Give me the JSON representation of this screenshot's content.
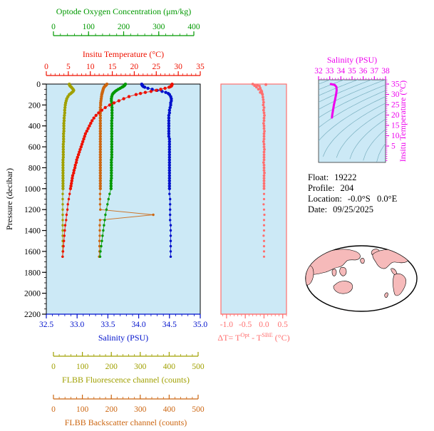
{
  "colors": {
    "background": "#ffffff",
    "plot_bg": "#cce9f6",
    "green": "#009900",
    "red": "#ee1100",
    "blue": "#0011cc",
    "olive": "#a0a000",
    "orange": "#cc6611",
    "salmon": "#ff6f6f",
    "magenta": "#ee00ee",
    "contour": "#7ab0c0",
    "axis_black": "#000000",
    "map_land": "#f6baba",
    "map_ocean": "#ffffff"
  },
  "info": {
    "rows": [
      {
        "label": "Float:",
        "value": "19222"
      },
      {
        "label": "Profile:",
        "value": "204"
      },
      {
        "label": "Location:",
        "value": "-0.0°S   0.0°E"
      },
      {
        "label": "Date:",
        "value": "09/25/2025"
      }
    ]
  },
  "chart_data": [
    {
      "type": "line",
      "name": "main-profile-plot",
      "pressure_axis": {
        "label": "Pressure (decibar)",
        "range": [
          0,
          2200
        ],
        "ticks": [
          "0",
          "200",
          "400",
          "600",
          "800",
          "1000",
          "1200",
          "1400",
          "1600",
          "1800",
          "2000",
          "2200"
        ]
      },
      "axes": {
        "oxygen": {
          "label": "Optode Oxygen Concentration (μm/kg)",
          "range": [
            0,
            400
          ],
          "ticks": [
            "0",
            "100",
            "200",
            "300",
            "400"
          ],
          "minor": 20,
          "color": "green"
        },
        "temperature": {
          "label": "Insitu Temperature (°C)",
          "range": [
            0,
            35
          ],
          "ticks": [
            "0",
            "5",
            "10",
            "15",
            "20",
            "25",
            "30",
            "35"
          ],
          "minor": 1,
          "color": "red"
        },
        "salinity": {
          "label": "Salinity (PSU)",
          "range": [
            32.5,
            35.0
          ],
          "ticks": [
            "32.5",
            "33.0",
            "33.5",
            "34.0",
            "34.5",
            "35.0"
          ],
          "minor": 0.1,
          "color": "blue"
        },
        "fluorescence": {
          "label": "FLBB Fluorescence channel (counts)",
          "range": [
            0,
            500
          ],
          "ticks": [
            "0",
            "100",
            "200",
            "300",
            "400",
            "500"
          ],
          "minor": 20,
          "color": "olive"
        },
        "backscatter": {
          "label": "FLBB Backscatter channel (counts)",
          "range": [
            0,
            500
          ],
          "ticks": [
            "0",
            "100",
            "200",
            "300",
            "400",
            "500"
          ],
          "minor": 20,
          "color": "orange"
        }
      },
      "pressure": [
        0,
        5,
        10,
        15,
        20,
        25,
        30,
        40,
        50,
        60,
        70,
        80,
        90,
        100,
        120,
        140,
        160,
        180,
        200,
        225,
        250,
        275,
        300,
        325,
        350,
        375,
        400,
        425,
        450,
        475,
        500,
        525,
        550,
        575,
        600,
        625,
        650,
        675,
        700,
        725,
        750,
        775,
        800,
        825,
        850,
        875,
        900,
        925,
        950,
        975,
        1000,
        1050,
        1100,
        1150,
        1200,
        1250,
        1300,
        1350,
        1400,
        1450,
        1500,
        1550,
        1600,
        1650
      ],
      "series": {
        "temperature": [
          28.6,
          28.6,
          28.5,
          28.5,
          28.4,
          28.2,
          27.9,
          27.0,
          26.0,
          25.0,
          23.8,
          22.5,
          21.4,
          20.4,
          18.8,
          17.6,
          16.5,
          15.4,
          14.4,
          13.4,
          12.6,
          11.9,
          11.3,
          10.8,
          10.4,
          10.1,
          9.8,
          9.5,
          9.2,
          8.9,
          8.7,
          8.5,
          8.3,
          8.1,
          7.9,
          7.7,
          7.5,
          7.3,
          7.1,
          6.9,
          6.8,
          6.6,
          6.5,
          6.3,
          6.2,
          6.0,
          5.9,
          5.8,
          5.7,
          5.6,
          5.5,
          5.3,
          5.1,
          4.9,
          4.8,
          4.6,
          4.5,
          4.3,
          4.2,
          4.1,
          4.0,
          3.9,
          3.8,
          3.7
        ],
        "salinity": [
          34.05,
          34.05,
          34.06,
          34.06,
          34.07,
          34.08,
          34.1,
          34.15,
          34.22,
          34.3,
          34.38,
          34.44,
          34.48,
          34.5,
          34.52,
          34.53,
          34.53,
          34.52,
          34.52,
          34.51,
          34.5,
          34.5,
          34.49,
          34.49,
          34.49,
          34.49,
          34.49,
          34.49,
          34.49,
          34.49,
          34.49,
          34.5,
          34.5,
          34.5,
          34.5,
          34.5,
          34.5,
          34.5,
          34.5,
          34.5,
          34.5,
          34.5,
          34.5,
          34.5,
          34.5,
          34.5,
          34.5,
          34.5,
          34.5,
          34.5,
          34.5,
          34.5,
          34.51,
          34.51,
          34.51,
          34.51,
          34.51,
          34.52,
          34.52,
          34.52,
          34.52,
          34.52,
          34.52,
          34.52
        ],
        "oxygen": [
          205,
          204,
          203,
          202,
          200,
          198,
          195,
          190,
          185,
          180,
          176,
          173,
          170,
          168,
          166,
          165,
          165,
          166,
          166,
          167,
          167,
          167,
          167,
          167,
          166,
          166,
          166,
          166,
          166,
          166,
          166,
          166,
          166,
          166,
          166,
          166,
          166,
          166,
          166,
          165,
          165,
          165,
          165,
          165,
          165,
          165,
          165,
          164,
          164,
          164,
          164,
          160,
          157,
          154,
          151,
          148,
          146,
          144,
          142,
          140,
          138,
          136,
          134,
          133
        ],
        "fluorescence": [
          55,
          55,
          56,
          57,
          58,
          60,
          62,
          65,
          68,
          70,
          68,
          64,
          60,
          55,
          50,
          46,
          44,
          42,
          41,
          40,
          39,
          39,
          38,
          37,
          37,
          36,
          36,
          36,
          36,
          35,
          35,
          35,
          35,
          34,
          34,
          34,
          34,
          34,
          34,
          33,
          33,
          33,
          33,
          33,
          33,
          33,
          33,
          33,
          33,
          33,
          33,
          32,
          32,
          32,
          32,
          32,
          32,
          32,
          32,
          32,
          32,
          32,
          32,
          32
        ],
        "backscatter": [
          185,
          183,
          182,
          180,
          178,
          176,
          175,
          173,
          172,
          171,
          170,
          169,
          168,
          167,
          166,
          165,
          164,
          163,
          163,
          162,
          162,
          162,
          162,
          162,
          162,
          162,
          162,
          162,
          162,
          162,
          162,
          162,
          162,
          162,
          162,
          162,
          162,
          162,
          162,
          162,
          162,
          162,
          162,
          162,
          162,
          162,
          162,
          162,
          162,
          162,
          162,
          161,
          161,
          161,
          162,
          345,
          161,
          160,
          160,
          160,
          159,
          159,
          159,
          158
        ]
      }
    },
    {
      "type": "scatter",
      "name": "delta-t-plot",
      "x_axis": {
        "label_parts": {
          "pre": "ΔT= T",
          "sup1": "Opt",
          "mid": " - T",
          "sup2": "SBE",
          "post": " (°C)"
        },
        "range": [
          -1.15,
          0.6
        ],
        "ticks": [
          "-1.0",
          "-0.5",
          "0.0",
          "0.5"
        ],
        "minor": 0.1,
        "color": "salmon"
      },
      "pressure": [
        0,
        5,
        10,
        15,
        20,
        30,
        40,
        50,
        60,
        70,
        80,
        90,
        100,
        125,
        150,
        175,
        200,
        225,
        250,
        275,
        300,
        325,
        350,
        375,
        400,
        425,
        450,
        475,
        500,
        525,
        550,
        575,
        600,
        625,
        650,
        675,
        700,
        725,
        750,
        775,
        800,
        825,
        850,
        875,
        900,
        925,
        950,
        975,
        1000,
        1050,
        1100,
        1150,
        1200,
        1250,
        1300,
        1350,
        1400,
        1450,
        1500,
        1550,
        1600,
        1650
      ],
      "values": [
        -0.3,
        0.05,
        -0.18,
        -0.25,
        -0.12,
        -0.2,
        -0.1,
        -0.15,
        -0.08,
        -0.06,
        -0.1,
        -0.05,
        -0.04,
        -0.03,
        -0.02,
        -0.01,
        -0.02,
        0.0,
        -0.01,
        0.0,
        0.01,
        0.0,
        0.0,
        -0.01,
        0.0,
        0.0,
        0.01,
        0.0,
        0.0,
        0.0,
        -0.01,
        0.0,
        0.0,
        0.01,
        0.0,
        0.0,
        0.0,
        0.0,
        -0.01,
        0.0,
        0.0,
        0.0,
        0.01,
        0.0,
        0.0,
        0.0,
        0.0,
        0.0,
        0.0,
        0.0,
        0.0,
        -0.01,
        0.0,
        0.01,
        0.0,
        0.0,
        0.0,
        -0.01,
        0.0,
        0.0,
        0.0,
        0.0
      ]
    },
    {
      "type": "line",
      "name": "ts-diagram",
      "x_axis": {
        "label": "Salinity (PSU)",
        "range": [
          32,
          38
        ],
        "ticks": [
          "32",
          "33",
          "34",
          "35",
          "36",
          "37",
          "38"
        ],
        "minor": 0.25,
        "color": "magenta"
      },
      "y_axis": {
        "label": "Insitu Temperature (°C)",
        "ticks": [
          "35",
          "30",
          "25",
          "20",
          "15",
          "10",
          "5"
        ],
        "tick_values": [
          35,
          30,
          25,
          20,
          15,
          10,
          5
        ],
        "color": "magenta"
      },
      "salinity": [
        33.1,
        33.45,
        33.6,
        33.62,
        33.57,
        33.48,
        33.38,
        33.3,
        33.24,
        33.2
      ],
      "temperature": [
        35.0,
        34.6,
        33.6,
        32.0,
        30.0,
        27.5,
        25.0,
        22.5,
        20.5,
        18.8
      ],
      "contours": {
        "sigma_min": 18,
        "sigma_max": 30,
        "step": 1
      }
    }
  ]
}
